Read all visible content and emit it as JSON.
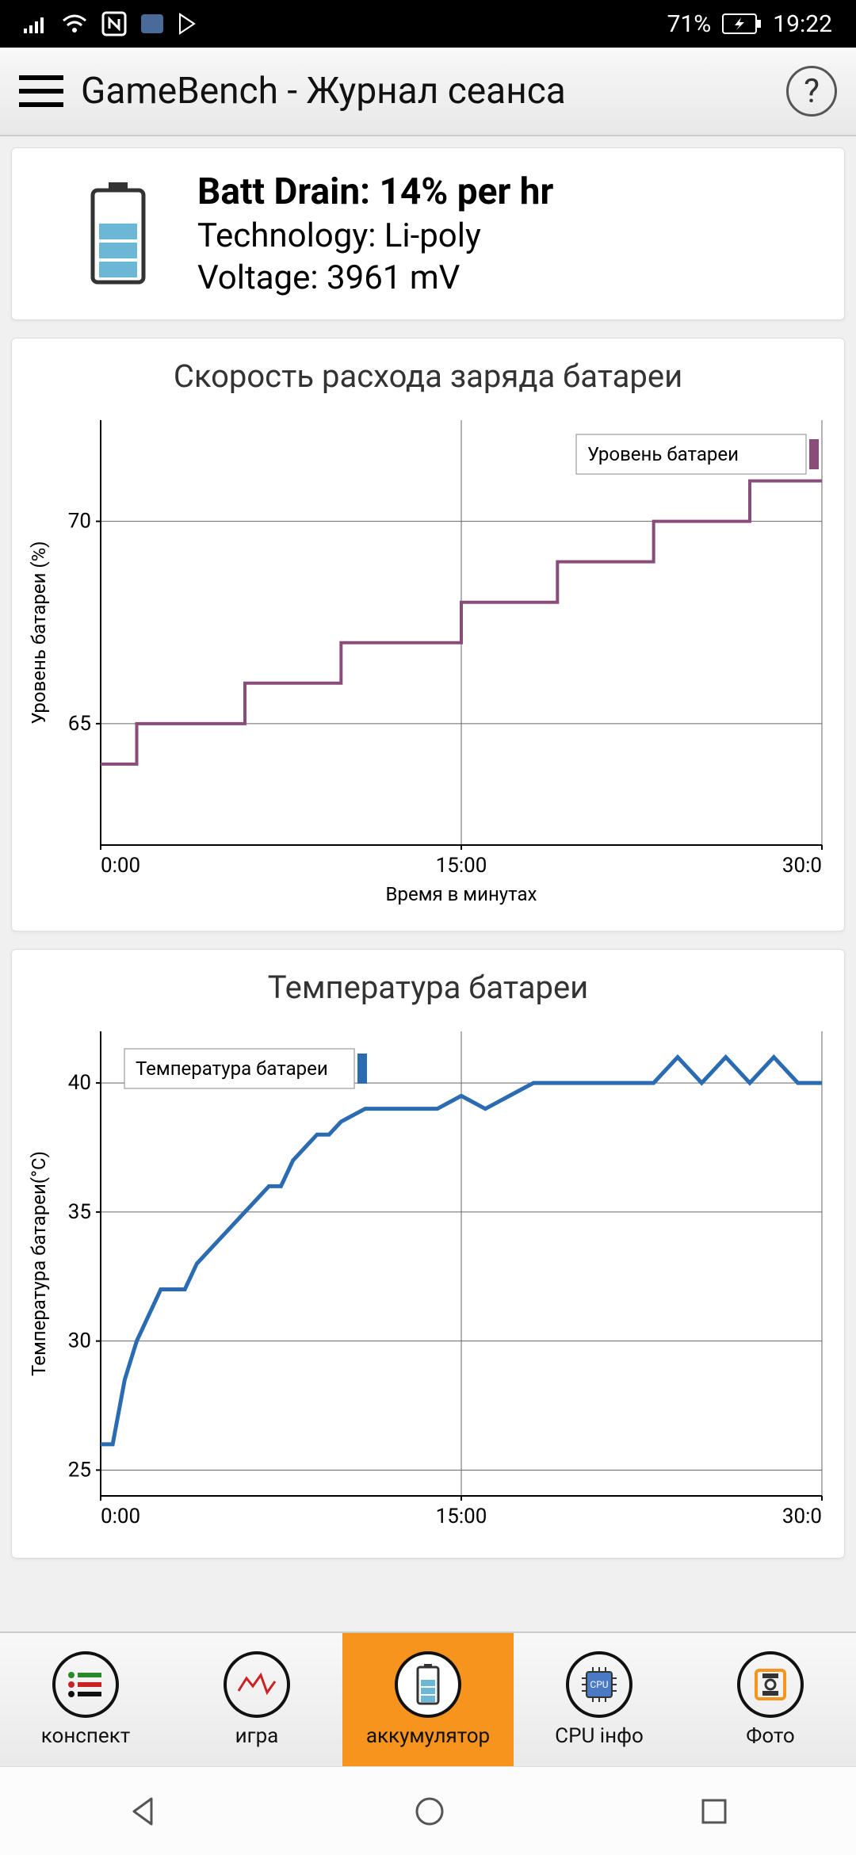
{
  "status_bar": {
    "battery_percent": "71%",
    "time": "19:22"
  },
  "header": {
    "title": "GameBench - Журнал сеанса"
  },
  "battery_info": {
    "drain_label": "Batt Drain: 14% per hr",
    "technology_label": "Technology: Li-poly",
    "voltage_label": "Voltage: 3961 mV"
  },
  "chart1": {
    "type": "step-line",
    "title": "Скорость расхода заряда батареи",
    "y_label": "Уровень батареи (%)",
    "x_label": "Время в минутах",
    "legend_label": "Уровень батареи",
    "line_color": "#8a4d7a",
    "legend_marker_color": "#8a4d7a",
    "grid_color": "#666666",
    "axis_color": "#000000",
    "background_color": "#ffffff",
    "line_width": 4,
    "x_ticks": [
      "0:00",
      "15:00",
      "30:0"
    ],
    "x_tick_values": [
      0,
      15,
      30
    ],
    "y_ticks": [
      65,
      70
    ],
    "ylim": [
      62,
      72.5
    ],
    "xlim": [
      0,
      30
    ],
    "data": [
      {
        "x": 0,
        "y": 64
      },
      {
        "x": 1.5,
        "y": 64
      },
      {
        "x": 1.5,
        "y": 65
      },
      {
        "x": 6,
        "y": 65
      },
      {
        "x": 6,
        "y": 66
      },
      {
        "x": 10,
        "y": 66
      },
      {
        "x": 10,
        "y": 67
      },
      {
        "x": 15,
        "y": 67
      },
      {
        "x": 15,
        "y": 68
      },
      {
        "x": 19,
        "y": 68
      },
      {
        "x": 19,
        "y": 69
      },
      {
        "x": 23,
        "y": 69
      },
      {
        "x": 23,
        "y": 70
      },
      {
        "x": 27,
        "y": 70
      },
      {
        "x": 27,
        "y": 71
      },
      {
        "x": 30,
        "y": 71
      }
    ]
  },
  "chart2": {
    "type": "line",
    "title": "Температура батареи",
    "y_label": "Температура батареи(°C)",
    "legend_label": "Температура батареи",
    "line_color": "#2b6bb2",
    "legend_marker_color": "#2b6bb2",
    "grid_color": "#666666",
    "axis_color": "#000000",
    "background_color": "#ffffff",
    "line_width": 5,
    "x_ticks": [
      "0:00",
      "15:00",
      "30:0"
    ],
    "x_tick_values": [
      0,
      15,
      30
    ],
    "y_ticks": [
      25,
      30,
      35,
      40
    ],
    "ylim": [
      24,
      42
    ],
    "xlim": [
      0,
      30
    ],
    "data": [
      {
        "x": 0,
        "y": 26
      },
      {
        "x": 0.5,
        "y": 26
      },
      {
        "x": 1,
        "y": 28.5
      },
      {
        "x": 1.5,
        "y": 30
      },
      {
        "x": 2,
        "y": 31
      },
      {
        "x": 2.5,
        "y": 32
      },
      {
        "x": 3.5,
        "y": 32
      },
      {
        "x": 4,
        "y": 33
      },
      {
        "x": 4.5,
        "y": 33.5
      },
      {
        "x": 5,
        "y": 34
      },
      {
        "x": 5.5,
        "y": 34.5
      },
      {
        "x": 6,
        "y": 35
      },
      {
        "x": 6.5,
        "y": 35.5
      },
      {
        "x": 7,
        "y": 36
      },
      {
        "x": 7.5,
        "y": 36
      },
      {
        "x": 8,
        "y": 37
      },
      {
        "x": 8.5,
        "y": 37.5
      },
      {
        "x": 9,
        "y": 38
      },
      {
        "x": 9.5,
        "y": 38
      },
      {
        "x": 10,
        "y": 38.5
      },
      {
        "x": 11,
        "y": 39
      },
      {
        "x": 13,
        "y": 39
      },
      {
        "x": 14,
        "y": 39
      },
      {
        "x": 15,
        "y": 39.5
      },
      {
        "x": 16,
        "y": 39
      },
      {
        "x": 17,
        "y": 39.5
      },
      {
        "x": 18,
        "y": 40
      },
      {
        "x": 23,
        "y": 40
      },
      {
        "x": 24,
        "y": 41
      },
      {
        "x": 25,
        "y": 40
      },
      {
        "x": 26,
        "y": 41
      },
      {
        "x": 27,
        "y": 40
      },
      {
        "x": 28,
        "y": 41
      },
      {
        "x": 29,
        "y": 40
      },
      {
        "x": 30,
        "y": 40
      }
    ]
  },
  "tabs": [
    {
      "label": "конспект",
      "active": false
    },
    {
      "label": "игра",
      "active": false
    },
    {
      "label": "аккумулятор",
      "active": true
    },
    {
      "label": "CPU інфо",
      "active": false
    },
    {
      "label": "Фото",
      "active": false
    }
  ]
}
